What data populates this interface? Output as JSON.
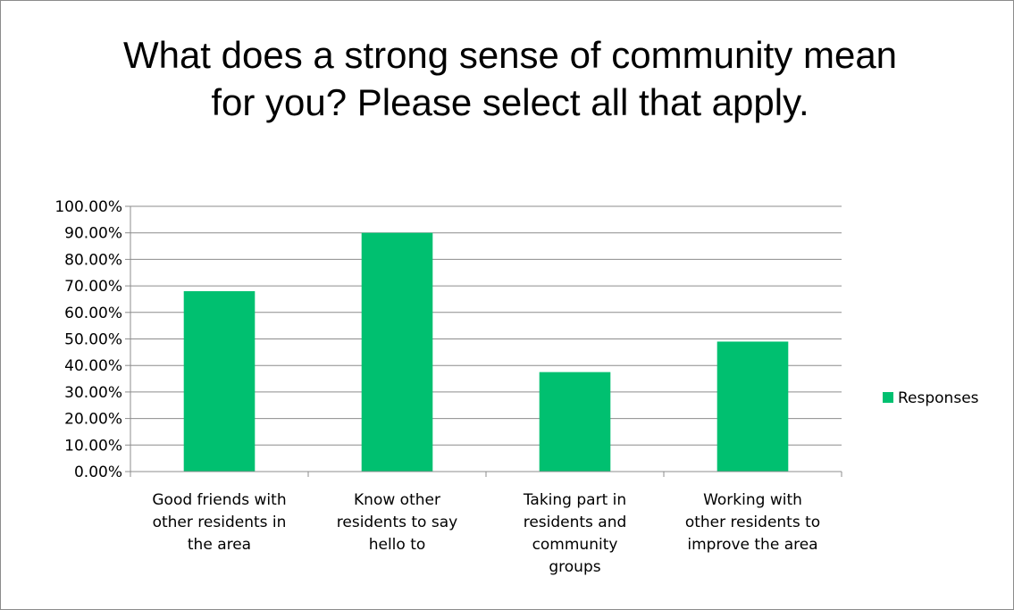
{
  "chart_data": {
    "type": "bar",
    "title": "What does a strong sense of community mean for you? Please select all that apply.",
    "categories": [
      [
        "Good friends with",
        "other residents in",
        "the area"
      ],
      [
        "Know other",
        "residents to say",
        "hello to"
      ],
      [
        "Taking part in",
        "residents and",
        "community",
        "groups"
      ],
      [
        "Working with",
        "other residents to",
        "improve the area"
      ]
    ],
    "series": [
      {
        "name": "Responses",
        "values": [
          0.68,
          0.9,
          0.375,
          0.49
        ],
        "color": "#00c070"
      }
    ],
    "yticks": [
      "0.00%",
      "10.00%",
      "20.00%",
      "30.00%",
      "40.00%",
      "50.00%",
      "60.00%",
      "70.00%",
      "80.00%",
      "90.00%",
      "100.00%"
    ],
    "ylim": [
      0,
      1
    ],
    "grid": true,
    "legend_position": "right",
    "gridline_color": "#8c8c8c",
    "axis_color": "#8c8c8c"
  }
}
